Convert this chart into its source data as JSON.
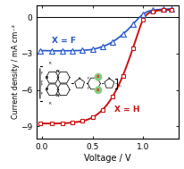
{
  "title": "",
  "xlabel": "Voltage / V",
  "ylabel": "Current density / mA cm⁻²",
  "xlim": [
    -0.05,
    1.35
  ],
  "ylim": [
    -10.0,
    1.0
  ],
  "yticks": [
    0,
    -3,
    -6,
    -9
  ],
  "xticks": [
    0.0,
    0.5,
    1.0
  ],
  "blue_label": "X = F",
  "red_label": "X = H",
  "blue_color": "#2255cc",
  "red_color": "#cc1111",
  "background_color": "#ffffff",
  "blue_x": [
    -0.02,
    0.05,
    0.1,
    0.15,
    0.2,
    0.25,
    0.3,
    0.35,
    0.4,
    0.45,
    0.5,
    0.55,
    0.6,
    0.65,
    0.7,
    0.75,
    0.8,
    0.85,
    0.9,
    0.95,
    1.0,
    1.05,
    1.1,
    1.15,
    1.2,
    1.25,
    1.28
  ],
  "blue_y": [
    -2.75,
    -2.76,
    -2.77,
    -2.77,
    -2.77,
    -2.77,
    -2.76,
    -2.75,
    -2.73,
    -2.7,
    -2.65,
    -2.55,
    -2.42,
    -2.25,
    -2.02,
    -1.74,
    -1.4,
    -1.02,
    -0.58,
    -0.12,
    0.25,
    0.48,
    0.58,
    0.63,
    0.66,
    0.68,
    0.69
  ],
  "red_x": [
    -0.02,
    0.05,
    0.1,
    0.15,
    0.2,
    0.25,
    0.3,
    0.35,
    0.4,
    0.45,
    0.5,
    0.55,
    0.6,
    0.65,
    0.7,
    0.75,
    0.8,
    0.85,
    0.9,
    0.95,
    1.0,
    1.05,
    1.1,
    1.15,
    1.2,
    1.25,
    1.28
  ],
  "red_y": [
    -8.75,
    -8.76,
    -8.76,
    -8.75,
    -8.74,
    -8.72,
    -8.68,
    -8.63,
    -8.56,
    -8.44,
    -8.26,
    -7.99,
    -7.62,
    -7.14,
    -6.52,
    -5.75,
    -4.82,
    -3.74,
    -2.55,
    -1.3,
    -0.2,
    0.3,
    0.48,
    0.55,
    0.58,
    0.6,
    0.61
  ],
  "blue_marker_x": [
    -0.02,
    0.1,
    0.2,
    0.3,
    0.4,
    0.5,
    0.6,
    0.7,
    0.8,
    0.9,
    1.0,
    1.1,
    1.2,
    1.28
  ],
  "red_marker_x": [
    -0.02,
    0.1,
    0.2,
    0.3,
    0.4,
    0.5,
    0.6,
    0.7,
    0.8,
    0.9,
    1.0,
    1.1,
    1.2,
    1.28
  ]
}
